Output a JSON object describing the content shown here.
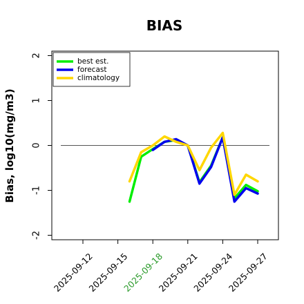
{
  "chart_data": {
    "type": "line",
    "title": "BIAS",
    "xlabel": "",
    "ylabel": "Bias, log10(mg/m3)",
    "ylim": [
      -2.1,
      2.1
    ],
    "y_ticks": [
      -2,
      -1,
      0,
      1,
      2
    ],
    "x_tick_labels": [
      "2025-09-12",
      "2025-09-15",
      "2025-09-18",
      "2025-09-21",
      "2025-09-24",
      "2025-09-27"
    ],
    "highlighted_x_tick": "2025-09-18",
    "highlight_color": "#2a9a2a",
    "x": [
      "2025-09-16",
      "2025-09-17",
      "2025-09-18",
      "2025-09-19",
      "2025-09-20",
      "2025-09-21",
      "2025-09-22",
      "2025-09-23",
      "2025-09-24",
      "2025-09-25",
      "2025-09-26",
      "2025-09-27"
    ],
    "reference_line": 0,
    "legend_position": "top-left",
    "series": [
      {
        "name": "best est.",
        "color": "#00ee00",
        "values": [
          -1.25,
          -0.25,
          -0.08,
          0.08,
          0.12,
          0.0,
          -0.82,
          -0.45,
          0.18,
          -1.18,
          -0.88,
          -1.02
        ]
      },
      {
        "name": "forecast",
        "color": "#0000ee",
        "values": [
          null,
          null,
          -0.1,
          0.08,
          0.14,
          0.0,
          -0.85,
          -0.48,
          0.18,
          -1.25,
          -0.95,
          -1.07
        ]
      },
      {
        "name": "climatology",
        "color": "#ffd700",
        "values": [
          -0.8,
          -0.15,
          0.0,
          0.2,
          0.08,
          0.0,
          -0.55,
          -0.05,
          0.28,
          -1.1,
          -0.65,
          -0.8
        ]
      }
    ]
  }
}
